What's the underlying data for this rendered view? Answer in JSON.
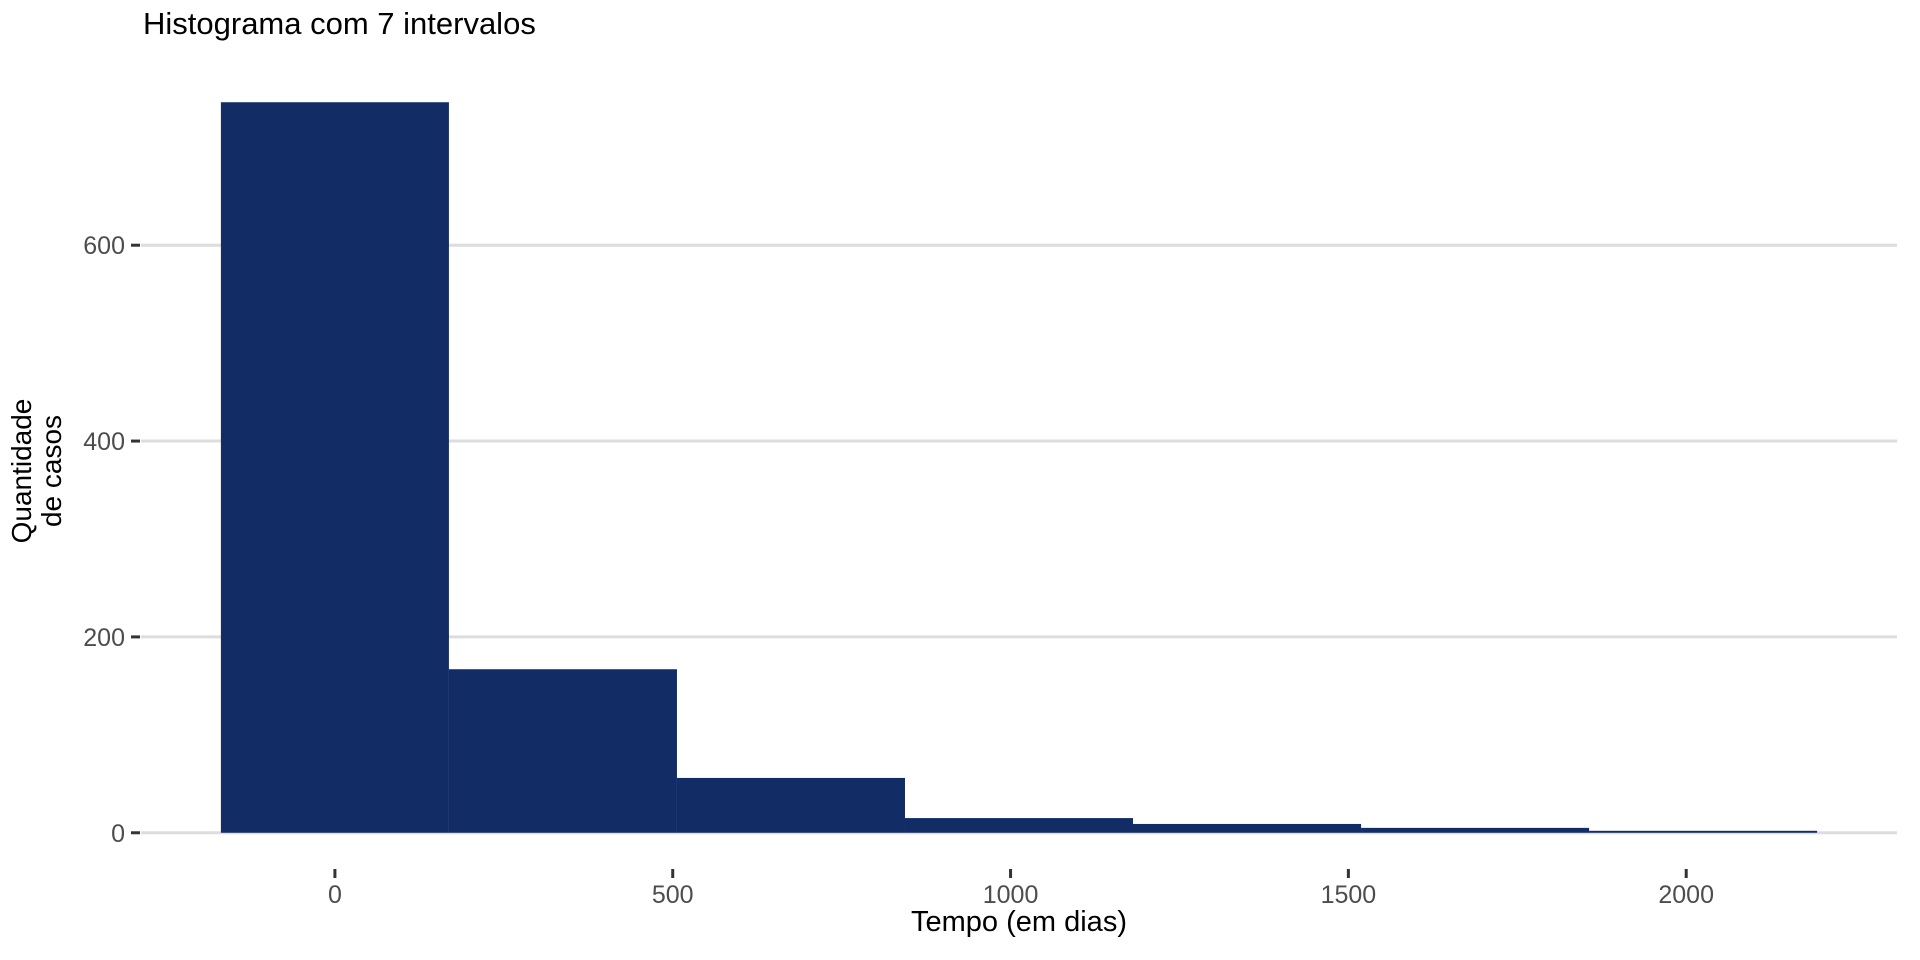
{
  "chart_data": {
    "type": "bar",
    "subtype": "histogram",
    "title": "Histograma com 7 intervalos",
    "xlabel": "Tempo (em dias)",
    "ylabel": "Quantidade\nde casos",
    "bin_width": 337.5,
    "bin_centers": [
      0,
      337.5,
      675,
      1012.5,
      1350,
      1687.5,
      2025
    ],
    "counts": [
      746,
      167,
      56,
      15,
      9,
      5,
      2
    ],
    "x_ticks": [
      0,
      500,
      1000,
      1500,
      2000
    ],
    "y_ticks": [
      0,
      200,
      400,
      600
    ],
    "xlim": [
      -287,
      2312
    ],
    "ylim": [
      -37,
      783
    ],
    "legend": "none",
    "grid": "horizontal-major-only",
    "colors": {
      "bar_fill": "#122C66",
      "gridline": "#DDDDDD",
      "tick_mark": "#333333",
      "tick_label": "#4D4D4D",
      "background": "#FFFFFF",
      "text": "#000000"
    }
  }
}
